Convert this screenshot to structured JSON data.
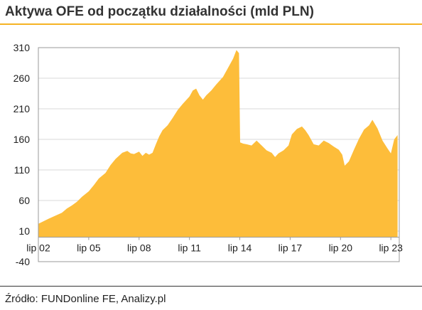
{
  "page": {
    "source": "Źródło: FUNDonline FE, Analizy.pl"
  },
  "chart_data": {
    "type": "area",
    "title": "Aktywa OFE od początku działalności (mld PLN)",
    "ylim": [
      -40,
      310
    ],
    "yticks": [
      -40,
      10,
      60,
      110,
      160,
      210,
      260,
      310
    ],
    "xlim": [
      2002.0,
      2023.5
    ],
    "xtick_labels": [
      "lip 02",
      "lip 05",
      "lip 08",
      "lip 11",
      "lip 14",
      "lip 17",
      "lip 20",
      "lip 23"
    ],
    "xtick_positions": [
      2002.0,
      2005.0,
      2008.0,
      2011.0,
      2014.0,
      2017.0,
      2020.0,
      2023.0
    ],
    "grid": "horizontal",
    "color": "#fdbd3a",
    "series": [
      {
        "x": [
          2002.0,
          2002.3,
          2002.6,
          2003.0,
          2003.4,
          2003.7,
          2004.0,
          2004.3,
          2004.6,
          2005.0,
          2005.3,
          2005.6,
          2006.0,
          2006.3,
          2006.6,
          2007.0,
          2007.3,
          2007.5,
          2007.7,
          2008.0,
          2008.2,
          2008.4,
          2008.6,
          2008.8,
          2009.0,
          2009.2,
          2009.4,
          2009.7,
          2010.0,
          2010.3,
          2010.6,
          2011.0,
          2011.2,
          2011.4,
          2011.6,
          2011.8,
          2012.0,
          2012.3,
          2012.6,
          2013.0,
          2013.3,
          2013.6,
          2013.8,
          2013.95,
          2014.02,
          2014.2,
          2014.4,
          2014.7,
          2015.0,
          2015.3,
          2015.6,
          2015.9,
          2016.1,
          2016.3,
          2016.6,
          2016.9,
          2017.1,
          2017.4,
          2017.7,
          2017.9,
          2018.1,
          2018.4,
          2018.7,
          2019.0,
          2019.3,
          2019.6,
          2019.9,
          2020.1,
          2020.25,
          2020.5,
          2020.8,
          2021.1,
          2021.4,
          2021.7,
          2021.9,
          2022.2,
          2022.5,
          2022.8,
          2023.0,
          2023.2,
          2023.4
        ],
        "values": [
          22,
          26,
          30,
          35,
          40,
          47,
          52,
          58,
          66,
          75,
          85,
          96,
          105,
          118,
          128,
          138,
          141,
          137,
          136,
          140,
          133,
          138,
          135,
          138,
          152,
          165,
          175,
          183,
          195,
          208,
          218,
          230,
          240,
          243,
          232,
          225,
          232,
          240,
          250,
          262,
          277,
          292,
          306,
          301,
          155,
          153,
          152,
          150,
          158,
          150,
          142,
          138,
          131,
          137,
          142,
          150,
          168,
          177,
          181,
          175,
          167,
          152,
          150,
          158,
          154,
          148,
          143,
          135,
          117,
          124,
          143,
          161,
          176,
          183,
          192,
          178,
          158,
          145,
          137,
          160,
          167
        ]
      }
    ]
  }
}
